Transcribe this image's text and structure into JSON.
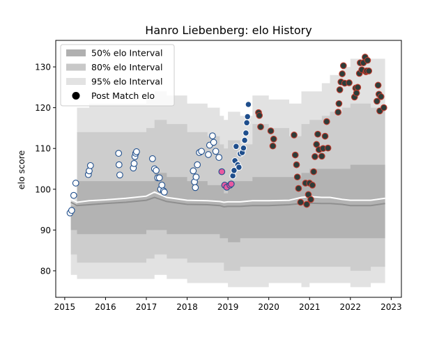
{
  "chart_data": {
    "type": "scatter",
    "title": "Hanro Liebenberg: elo History",
    "xlabel": "",
    "ylabel": "elo score",
    "xlim": [
      2014.78,
      2023.25
    ],
    "ylim": [
      73.5,
      136.5
    ],
    "x_ticks": [
      2015,
      2016,
      2017,
      2018,
      2019,
      2020,
      2021,
      2022,
      2023
    ],
    "y_ticks": [
      80,
      90,
      100,
      110,
      120,
      130
    ],
    "grid": false,
    "legend_position": "top-left",
    "legend": [
      {
        "label": "50% elo Interval",
        "kind": "band",
        "color": "#b0b0b0"
      },
      {
        "label": "80% elo Interval",
        "kind": "band",
        "color": "#c8c8c8"
      },
      {
        "label": "95% elo Interval",
        "kind": "band",
        "color": "#e2e2e2"
      },
      {
        "label": "Post Match elo",
        "kind": "marker",
        "color": "#000000"
      }
    ],
    "colors": {
      "band95": "#e2e2e2",
      "band80": "#cdcdcd",
      "band50": "#b3b3b3",
      "median": "#8f8f8f",
      "mean": "#ffffff",
      "blue_fill": "#ffffff",
      "blue_edge": "#1f4e8c",
      "blue_solid": "#1f4e8c",
      "pink": "#e85aa0",
      "dark_fill": "#2e3d3a",
      "red_edge": "#c0392b"
    },
    "bands": {
      "x": [
        2015.15,
        2015.3,
        2015.6,
        2016.0,
        2016.5,
        2017.0,
        2017.2,
        2017.5,
        2018.0,
        2018.5,
        2018.8,
        2018.9,
        2019.0,
        2019.3,
        2019.6,
        2020.0,
        2020.5,
        2020.8,
        2021.0,
        2021.3,
        2021.5,
        2021.8,
        2022.0,
        2022.5,
        2022.85
      ],
      "p95_hi": [
        99,
        120,
        121,
        121,
        121,
        122,
        124,
        123,
        121,
        120,
        118,
        117,
        119,
        118,
        123,
        122,
        121,
        124,
        124,
        126,
        128,
        130,
        132,
        132,
        132
      ],
      "p95_lo": [
        79,
        78,
        78,
        78,
        78,
        78,
        79,
        78,
        77,
        77,
        77,
        77,
        76,
        76,
        76,
        77,
        77,
        76,
        77,
        77,
        77,
        77,
        76,
        77,
        77
      ],
      "p80_hi": [
        97,
        114,
        114,
        114,
        114,
        115,
        117,
        116,
        114,
        113,
        111,
        110,
        112,
        111,
        116,
        115,
        113,
        116,
        117,
        118,
        119,
        120,
        121,
        120,
        120
      ],
      "p80_lo": [
        84,
        82,
        82,
        82,
        82,
        83,
        84,
        83,
        82,
        82,
        82,
        80,
        80,
        81,
        81,
        81,
        81,
        81,
        81,
        81,
        81,
        81,
        80,
        81,
        81
      ],
      "p50_hi": [
        96,
        102,
        102,
        102,
        102,
        102,
        104,
        103,
        102,
        101,
        101,
        99,
        102,
        102,
        103,
        103,
        103,
        104,
        105,
        105,
        105,
        105,
        106,
        106,
        106
      ],
      "p50_lo": [
        90,
        89,
        89,
        89,
        89,
        90,
        90,
        89,
        89,
        89,
        88,
        88,
        87,
        88,
        88,
        88,
        88,
        88,
        88,
        88,
        88,
        88,
        88,
        88,
        88
      ],
      "median": [
        96.8,
        96.0,
        96.2,
        96.5,
        96.8,
        97.3,
        98.0,
        97.0,
        96.3,
        96.2,
        96.0,
        95.7,
        95.8,
        95.8,
        96.0,
        96.0,
        96.2,
        96.5,
        96.6,
        96.5,
        96.5,
        96.3,
        96.0,
        96.0,
        96.5
      ],
      "mean": [
        97.6,
        96.8,
        97.2,
        97.4,
        97.8,
        98.3,
        99.3,
        98.0,
        97.3,
        97.2,
        97.0,
        96.8,
        96.9,
        96.9,
        97.2,
        97.2,
        97.3,
        98.0,
        98.2,
        98.0,
        98.0,
        97.5,
        97.3,
        97.3,
        97.8
      ]
    },
    "series": [
      {
        "style": "blue",
        "points": [
          [
            2015.13,
            94.2
          ],
          [
            2015.17,
            94.8
          ],
          [
            2015.22,
            98.5
          ],
          [
            2015.27,
            101.5
          ],
          [
            2015.58,
            103.6
          ],
          [
            2015.6,
            104.5
          ],
          [
            2015.63,
            105.8
          ],
          [
            2016.32,
            108.8
          ],
          [
            2016.33,
            106.0
          ],
          [
            2016.35,
            103.5
          ],
          [
            2016.68,
            105.2
          ],
          [
            2016.7,
            106.3
          ],
          [
            2016.72,
            108.0
          ],
          [
            2016.74,
            108.8
          ],
          [
            2016.76,
            109.2
          ],
          [
            2017.15,
            107.5
          ],
          [
            2017.2,
            105.0
          ],
          [
            2017.24,
            104.6
          ],
          [
            2017.28,
            102.8
          ],
          [
            2017.32,
            102.8
          ],
          [
            2017.35,
            100.0
          ],
          [
            2017.38,
            101.0
          ],
          [
            2017.42,
            99.6
          ],
          [
            2017.44,
            99.3
          ],
          [
            2018.15,
            104.5
          ],
          [
            2018.18,
            101.8
          ],
          [
            2018.2,
            100.4
          ],
          [
            2018.22,
            103.0
          ],
          [
            2018.25,
            106.0
          ],
          [
            2018.3,
            109.0
          ],
          [
            2018.35,
            109.3
          ],
          [
            2018.52,
            108.5
          ],
          [
            2018.55,
            110.8
          ],
          [
            2018.62,
            113.1
          ],
          [
            2018.65,
            111.5
          ],
          [
            2018.7,
            109.3
          ],
          [
            2018.78,
            107.8
          ]
        ]
      },
      {
        "style": "pink",
        "points": [
          [
            2018.85,
            104.3
          ],
          [
            2018.92,
            101.0
          ],
          [
            2018.97,
            100.5
          ],
          [
            2019.05,
            101.0
          ],
          [
            2019.08,
            101.3
          ]
        ]
      },
      {
        "style": "blue_solid",
        "points": [
          [
            2019.12,
            103.3
          ],
          [
            2019.15,
            104.6
          ],
          [
            2019.17,
            107.0
          ],
          [
            2019.2,
            110.5
          ],
          [
            2019.24,
            106.0
          ],
          [
            2019.27,
            105.4
          ],
          [
            2019.3,
            108.7
          ],
          [
            2019.35,
            109.0
          ],
          [
            2019.38,
            110.1
          ],
          [
            2019.41,
            112.0
          ],
          [
            2019.44,
            113.8
          ],
          [
            2019.46,
            116.3
          ],
          [
            2019.48,
            117.8
          ],
          [
            2019.5,
            120.8
          ]
        ]
      },
      {
        "style": "dark",
        "points": [
          [
            2019.75,
            118.8
          ],
          [
            2019.77,
            118.1
          ],
          [
            2019.8,
            115.3
          ],
          [
            2020.05,
            114.3
          ],
          [
            2020.1,
            110.6
          ],
          [
            2020.12,
            112.3
          ],
          [
            2020.62,
            113.3
          ],
          [
            2020.65,
            108.4
          ],
          [
            2020.68,
            106.0
          ],
          [
            2020.7,
            103.0
          ],
          [
            2020.73,
            100.2
          ],
          [
            2020.78,
            96.8
          ],
          [
            2020.9,
            101.5
          ],
          [
            2020.93,
            96.3
          ],
          [
            2020.97,
            98.7
          ],
          [
            2021.0,
            101.5
          ],
          [
            2021.03,
            97.5
          ],
          [
            2021.07,
            101.0
          ],
          [
            2021.1,
            104.3
          ],
          [
            2021.13,
            108.0
          ],
          [
            2021.17,
            111.0
          ],
          [
            2021.2,
            113.5
          ],
          [
            2021.23,
            109.7
          ],
          [
            2021.3,
            108.1
          ],
          [
            2021.33,
            110.0
          ],
          [
            2021.38,
            113.0
          ],
          [
            2021.42,
            116.6
          ],
          [
            2021.45,
            110.1
          ],
          [
            2021.7,
            118.9
          ],
          [
            2021.72,
            121.0
          ],
          [
            2021.74,
            124.4
          ],
          [
            2021.77,
            126.3
          ],
          [
            2021.8,
            128.3
          ],
          [
            2021.83,
            130.3
          ],
          [
            2021.86,
            126.0
          ],
          [
            2021.97,
            126.1
          ],
          [
            2022.1,
            122.6
          ],
          [
            2022.13,
            124.8
          ],
          [
            2022.15,
            123.6
          ],
          [
            2022.18,
            125.0
          ],
          [
            2022.22,
            128.4
          ],
          [
            2022.24,
            131.0
          ],
          [
            2022.28,
            129.3
          ],
          [
            2022.32,
            131.0
          ],
          [
            2022.36,
            132.4
          ],
          [
            2022.38,
            128.8
          ],
          [
            2022.4,
            129.0
          ],
          [
            2022.42,
            131.6
          ],
          [
            2022.45,
            129.0
          ],
          [
            2022.65,
            121.6
          ],
          [
            2022.68,
            125.5
          ],
          [
            2022.7,
            123.3
          ],
          [
            2022.72,
            119.2
          ],
          [
            2022.75,
            122.7
          ],
          [
            2022.82,
            120.0
          ]
        ]
      }
    ]
  }
}
